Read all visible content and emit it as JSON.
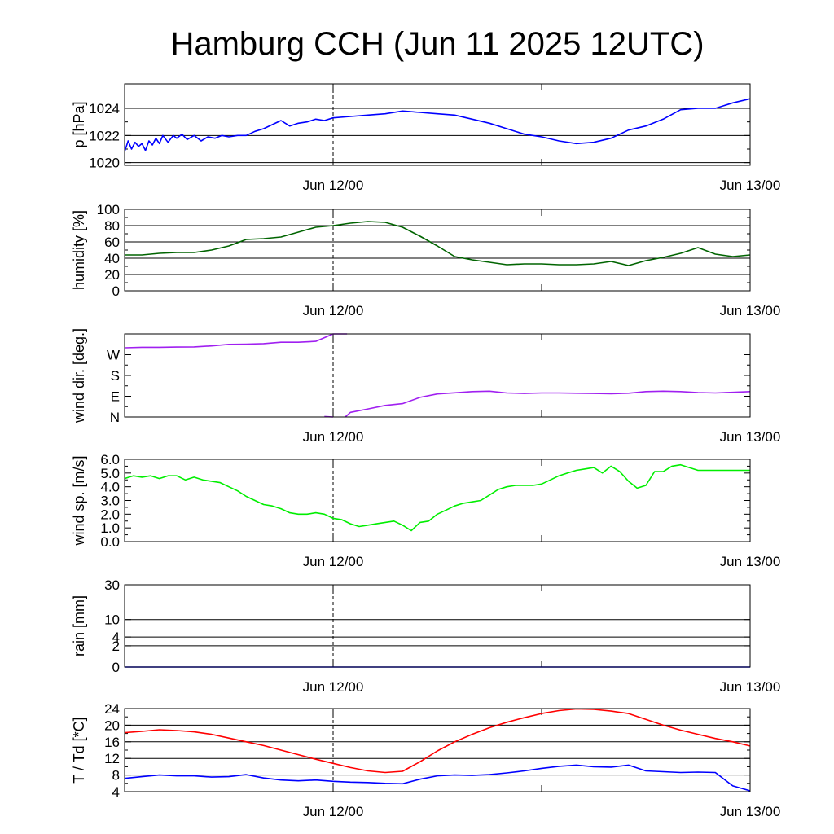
{
  "chart_data": {
    "type": "line",
    "title": "Hamburg CCH (Jun 11 2025 12UTC)",
    "x_tick_labels": [
      "Jun 12/00",
      "Jun 13/00"
    ],
    "x_unit": "hours since Jun 11 12UTC",
    "xlim": [
      0,
      36
    ],
    "panels": [
      {
        "id": "pressure",
        "ylabel": "p [hPa]",
        "ylim": [
          1019.8,
          1025.8
        ],
        "yticks": [
          1020,
          1022,
          1024
        ],
        "ytick_labels": [
          "1020",
          "1022",
          "1024"
        ],
        "gridlines": [
          1020,
          1022,
          1024
        ],
        "series": [
          {
            "color": "#0000ff",
            "x": [
              0,
              0.2,
              0.4,
              0.6,
              0.8,
              1.0,
              1.2,
              1.4,
              1.6,
              1.8,
              2.0,
              2.2,
              2.5,
              2.8,
              3.0,
              3.3,
              3.6,
              4.0,
              4.4,
              4.8,
              5.2,
              5.6,
              6.0,
              6.5,
              7.0,
              7.5,
              8.0,
              8.5,
              9.0,
              9.5,
              10.0,
              10.5,
              11.0,
              11.5,
              12.0,
              13.0,
              14.0,
              15.0,
              16.0,
              17.0,
              18.0,
              19.0,
              20.0,
              21.0,
              22.0,
              23.0,
              24.0,
              25.0,
              26.0,
              27.0,
              28.0,
              29.0,
              30.0,
              31.0,
              32.0,
              33.0,
              34.0,
              35.0,
              36.0
            ],
            "values": [
              1020.8,
              1021.6,
              1021.0,
              1021.5,
              1021.2,
              1021.4,
              1020.9,
              1021.6,
              1021.3,
              1021.8,
              1021.4,
              1022.0,
              1021.5,
              1022.0,
              1021.8,
              1022.1,
              1021.7,
              1022.0,
              1021.6,
              1021.9,
              1021.8,
              1022.0,
              1021.9,
              1022.0,
              1022.0,
              1022.3,
              1022.5,
              1022.8,
              1023.1,
              1022.7,
              1022.9,
              1023.0,
              1023.2,
              1023.1,
              1023.3,
              1023.4,
              1023.5,
              1023.6,
              1023.8,
              1023.7,
              1023.6,
              1023.5,
              1023.2,
              1022.9,
              1022.5,
              1022.1,
              1021.9,
              1021.6,
              1021.4,
              1021.5,
              1021.8,
              1022.4,
              1022.7,
              1023.2,
              1023.9,
              1024.0,
              1024.0,
              1024.4,
              1024.7
            ]
          }
        ]
      },
      {
        "id": "humidity",
        "ylabel": "humidity [%]",
        "ylim": [
          0,
          100
        ],
        "yticks": [
          0,
          20,
          40,
          60,
          80,
          100
        ],
        "ytick_labels": [
          "0",
          "20",
          "40",
          "60",
          "80",
          "100"
        ],
        "gridlines": [
          20,
          40,
          60,
          80
        ],
        "series": [
          {
            "color": "#006400",
            "x": [
              0,
              1,
              2,
              3,
              4,
              5,
              6,
              7,
              8,
              9,
              10,
              11,
              12,
              13,
              14,
              15,
              16,
              17,
              18,
              19,
              20,
              21,
              22,
              23,
              24,
              25,
              26,
              27,
              28,
              29,
              30,
              31,
              32,
              33,
              34,
              35,
              36
            ],
            "values": [
              44,
              44,
              46,
              47,
              47,
              50,
              55,
              63,
              64,
              66,
              72,
              78,
              80,
              83,
              85,
              84,
              78,
              67,
              55,
              42,
              38,
              35,
              32,
              33,
              33,
              32,
              32,
              33,
              36,
              31,
              37,
              41,
              46,
              53,
              45,
              42,
              44
            ]
          }
        ]
      },
      {
        "id": "wind_dir",
        "ylabel": "wind dir. [deg.]",
        "ylim": [
          0,
          360
        ],
        "yticks": [
          0,
          90,
          180,
          270
        ],
        "ytick_labels": [
          "N",
          "E",
          "S",
          "W"
        ],
        "gridlines": [],
        "series": [
          {
            "color": "#a020f0",
            "x": [
              0,
              1,
              2,
              3,
              4,
              5,
              6,
              7,
              8,
              9,
              10,
              11,
              12,
              12.8
            ],
            "values": [
              300,
              302,
              302,
              303,
              304,
              308,
              315,
              316,
              318,
              324,
              324,
              328,
              360,
              360
            ]
          },
          {
            "color": "#a020f0",
            "x": [
              11.5,
              12
            ],
            "values": [
              2,
              0
            ]
          },
          {
            "color": "#a020f0",
            "x": [
              12.7,
              13,
              14,
              15,
              16,
              17,
              18,
              19,
              20,
              21,
              22,
              23,
              24,
              25,
              26,
              27,
              28,
              29,
              30,
              31,
              32,
              33,
              34,
              35,
              36
            ],
            "values": [
              0,
              20,
              35,
              50,
              58,
              85,
              100,
              105,
              110,
              112,
              104,
              102,
              104,
              104,
              103,
              102,
              101,
              103,
              110,
              112,
              110,
              106,
              104,
              107,
              110
            ]
          }
        ]
      },
      {
        "id": "wind_speed",
        "ylabel": "wind sp. [m/s]",
        "ylim": [
          0,
          6
        ],
        "yticks": [
          0,
          1,
          2,
          3,
          4,
          5,
          6
        ],
        "ytick_labels": [
          "0.0",
          "1.0",
          "2.0",
          "3.0",
          "4.0",
          "5.0",
          "6.0"
        ],
        "gridlines": [],
        "series": [
          {
            "color": "#00ee00",
            "x": [
              0,
              0.5,
              1,
              1.5,
              2,
              2.5,
              3,
              3.5,
              4,
              4.5,
              5,
              5.5,
              6,
              6.5,
              7,
              7.5,
              8,
              8.5,
              9,
              9.5,
              10,
              10.5,
              11,
              11.5,
              12,
              12.5,
              13,
              13.5,
              14,
              14.5,
              15,
              15.5,
              16,
              16.5,
              17,
              17.5,
              18,
              18.5,
              19,
              19.5,
              20,
              20.5,
              21,
              21.5,
              22,
              22.5,
              23,
              23.5,
              24,
              24.5,
              25,
              25.5,
              26,
              26.5,
              27,
              27.5,
              28,
              28.5,
              29,
              29.5,
              30,
              30.5,
              31,
              31.5,
              32,
              32.5,
              33,
              33.5,
              34,
              34.5,
              35,
              35.5,
              36
            ],
            "values": [
              4.6,
              4.8,
              4.7,
              4.8,
              4.6,
              4.8,
              4.8,
              4.5,
              4.7,
              4.5,
              4.4,
              4.3,
              4.0,
              3.7,
              3.3,
              3.0,
              2.7,
              2.6,
              2.4,
              2.1,
              2.0,
              2.0,
              2.1,
              2.0,
              1.7,
              1.6,
              1.3,
              1.1,
              1.2,
              1.3,
              1.4,
              1.5,
              1.2,
              0.8,
              1.4,
              1.5,
              2.0,
              2.3,
              2.6,
              2.8,
              2.9,
              3.0,
              3.4,
              3.8,
              4.0,
              4.1,
              4.1,
              4.1,
              4.2,
              4.5,
              4.8,
              5.0,
              5.2,
              5.3,
              5.4,
              5.0,
              5.5,
              5.1,
              4.4,
              3.9,
              4.1,
              5.1,
              5.1,
              5.5,
              5.6,
              5.4,
              5.2,
              5.2,
              5.2,
              5.2,
              5.2,
              5.2,
              5.2
            ]
          }
        ]
      },
      {
        "id": "rain",
        "ylabel": "rain [mm]",
        "scale": "sqrt",
        "ylim": [
          0,
          30
        ],
        "yticks": [
          0,
          2,
          4,
          10,
          30
        ],
        "ytick_labels": [
          "0",
          "2",
          "4",
          "10",
          "30"
        ],
        "gridlines": [
          2,
          4,
          10,
          30
        ],
        "series": [
          {
            "color": "#0000ff",
            "x": [
              0,
              36
            ],
            "values": [
              0,
              0
            ]
          }
        ]
      },
      {
        "id": "temperature",
        "ylabel": "T / Td [*C]",
        "ylim": [
          4,
          24
        ],
        "yticks": [
          4,
          8,
          12,
          16,
          20,
          24
        ],
        "ytick_labels": [
          "4",
          "8",
          "12",
          "16",
          "20",
          "24"
        ],
        "gridlines": [
          8,
          12,
          16,
          20
        ],
        "series": [
          {
            "color": "#ff0000",
            "x": [
              0,
              1,
              2,
              3,
              4,
              5,
              6,
              7,
              8,
              9,
              10,
              11,
              12,
              13,
              14,
              15,
              16,
              17,
              18,
              19,
              20,
              21,
              22,
              23,
              24,
              25,
              26,
              27,
              28,
              29,
              30,
              31,
              32,
              33,
              34,
              35,
              36
            ],
            "values": [
              18.2,
              18.5,
              18.9,
              18.7,
              18.4,
              17.8,
              16.9,
              16.0,
              15.1,
              14.0,
              12.9,
              11.8,
              10.8,
              9.8,
              9.0,
              8.6,
              8.9,
              11.2,
              13.8,
              16.0,
              17.8,
              19.4,
              20.7,
              21.8,
              22.8,
              23.5,
              23.9,
              23.8,
              23.4,
              22.8,
              21.4,
              20.0,
              18.8,
              17.8,
              16.8,
              16.0,
              15.0
            ]
          },
          {
            "color": "#0000ff",
            "x": [
              0,
              1,
              2,
              3,
              4,
              5,
              6,
              7,
              8,
              9,
              10,
              11,
              12,
              13,
              14,
              15,
              16,
              17,
              18,
              19,
              20,
              21,
              22,
              23,
              24,
              25,
              26,
              27,
              28,
              29,
              30,
              31,
              32,
              33,
              34,
              35,
              36
            ],
            "values": [
              7.2,
              7.6,
              8.0,
              7.8,
              7.8,
              7.5,
              7.6,
              8.1,
              7.3,
              6.8,
              6.6,
              6.8,
              6.5,
              6.3,
              6.2,
              6.0,
              5.9,
              7.0,
              7.8,
              8.0,
              7.9,
              8.1,
              8.5,
              9.0,
              9.6,
              10.1,
              10.4,
              10.0,
              9.9,
              10.4,
              9.0,
              8.8,
              8.6,
              8.7,
              8.6,
              5.4,
              4.2
            ]
          }
        ]
      }
    ]
  }
}
